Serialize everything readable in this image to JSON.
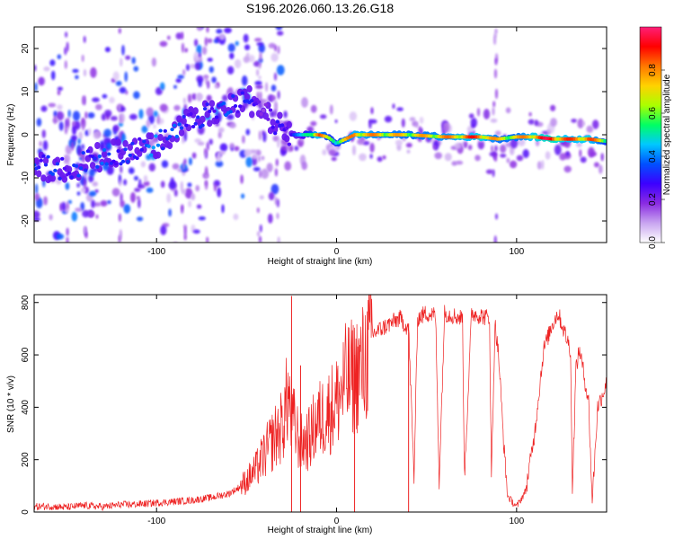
{
  "title": "S196.2026.060.13.26.G18",
  "chart_data": [
    {
      "type": "heatmap",
      "title": "S196.2026.060.13.26.G18",
      "xlabel": "Height of straight line (km)",
      "ylabel": "Frequency (Hz)",
      "xlim": [
        -168,
        150
      ],
      "ylim": [
        -25,
        25
      ],
      "xticks": [
        -100,
        0,
        100
      ],
      "yticks": [
        -20,
        -10,
        0,
        10,
        20
      ],
      "grid": false,
      "colorbar": {
        "label": "Normalized spectral amplitude",
        "range": [
          0,
          1
        ],
        "ticks": [
          0.0,
          0.2,
          0.4,
          0.6,
          0.8
        ],
        "colormap": [
          "#ffffff",
          "#c8a4f0",
          "#8a2be2",
          "#3c00ff",
          "#0050ff",
          "#00c8ff",
          "#00ff64",
          "#aaff00",
          "#ffd200",
          "#ff7800",
          "#ff0000",
          "#ff1e78"
        ]
      },
      "ridge": {
        "name": "dominant frequency track",
        "x": [
          -168,
          -150,
          -130,
          -115,
          -100,
          -90,
          -80,
          -70,
          -60,
          -50,
          -45,
          -40,
          -35,
          -30,
          -25,
          -20,
          -10,
          -5,
          0,
          5,
          10,
          20,
          40,
          60,
          80,
          90,
          100,
          110,
          120,
          130,
          140,
          150
        ],
        "y": [
          -7,
          -8,
          -5,
          -4,
          -2,
          1,
          3,
          5,
          6,
          8,
          7,
          5,
          3,
          1,
          0,
          0,
          0,
          -0.5,
          -2,
          -1,
          0,
          0,
          0,
          -0.5,
          -0.5,
          -1,
          -0.5,
          -0.5,
          -1,
          -1,
          -1,
          -1.5
        ],
        "peak_amplitude": [
          0.35,
          0.3,
          0.35,
          0.3,
          0.4,
          0.35,
          0.3,
          0.3,
          0.35,
          0.3,
          0.25,
          0.2,
          0.25,
          0.3,
          0.3,
          0.4,
          0.85,
          0.6,
          0.6,
          0.7,
          0.8,
          0.75,
          0.7,
          0.75,
          0.85,
          0.7,
          0.7,
          0.85,
          0.9,
          0.8,
          0.85,
          0.6
        ]
      }
    },
    {
      "type": "line",
      "xlabel": "Height of straight line (km)",
      "ylabel": "SNR (10 * v/v)",
      "xlim": [
        -168,
        150
      ],
      "ylim": [
        0,
        830
      ],
      "xticks": [
        -100,
        0,
        100
      ],
      "yticks": [
        0,
        200,
        400,
        600,
        800
      ],
      "grid": false,
      "color": "#ee2222",
      "series": [
        {
          "name": "SNR",
          "x": [
            -168,
            -160,
            -150,
            -140,
            -130,
            -120,
            -110,
            -100,
            -90,
            -80,
            -70,
            -60,
            -55,
            -50,
            -45,
            -40,
            -35,
            -30,
            -27,
            -25,
            -20,
            -15,
            -12,
            -10,
            -5,
            0,
            5,
            10,
            15,
            18,
            20,
            25,
            30,
            35,
            40,
            43,
            45,
            50,
            55,
            57,
            60,
            65,
            70,
            71,
            75,
            80,
            85,
            86,
            88,
            90,
            93,
            95,
            100,
            105,
            110,
            115,
            120,
            123,
            125,
            130,
            131,
            133,
            135,
            140,
            142,
            145,
            150
          ],
          "y": [
            20,
            22,
            18,
            25,
            20,
            28,
            30,
            35,
            40,
            45,
            55,
            70,
            90,
            120,
            160,
            220,
            280,
            330,
            450,
            360,
            260,
            280,
            330,
            350,
            380,
            420,
            500,
            520,
            560,
            620,
            680,
            700,
            720,
            740,
            700,
            130,
            740,
            760,
            750,
            120,
            760,
            750,
            740,
            130,
            760,
            750,
            740,
            130,
            720,
            600,
            250,
            60,
            20,
            80,
            300,
            620,
            720,
            760,
            720,
            620,
            80,
            550,
            620,
            420,
            40,
            400,
            490
          ],
          "spikes": [
            {
              "x": -25,
              "y": 825
            },
            {
              "x": -20,
              "y": 560
            },
            {
              "x": 10,
              "y": 600
            },
            {
              "x": 40,
              "y": 720
            }
          ]
        }
      ]
    }
  ]
}
